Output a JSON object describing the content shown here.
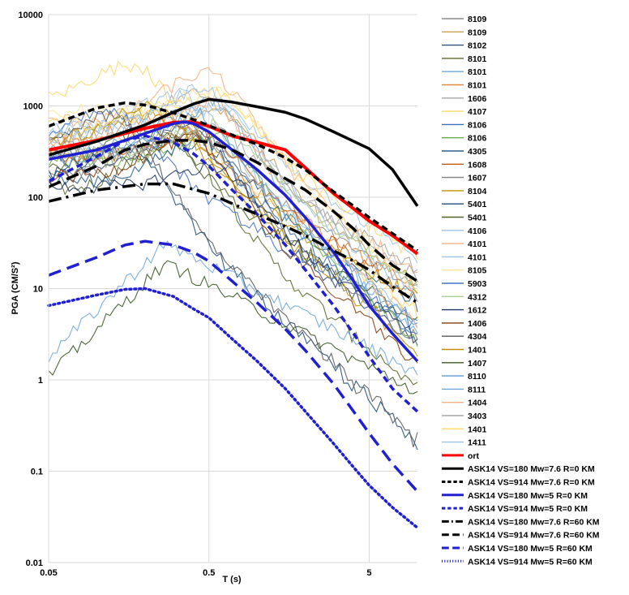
{
  "chart_data": {
    "type": "line",
    "title": "",
    "xlabel": "T (s)",
    "ylabel": "PGA (CM/S²)",
    "x_scale": "log",
    "y_scale": "log",
    "xlim": [
      0.05,
      10
    ],
    "ylim": [
      0.01,
      10000
    ],
    "x_ticks": [
      "0.05",
      "0.5",
      "5"
    ],
    "y_ticks": [
      "0.01",
      "0.1",
      "1",
      "10",
      "100",
      "1000",
      "10000"
    ],
    "grid": true,
    "legend_position": "right",
    "records": [
      {
        "name": "8109",
        "color": "#8c8c8c",
        "y0": 250
      },
      {
        "name": "8109",
        "color": "#c8a050",
        "y0": 300
      },
      {
        "name": "8102",
        "color": "#2f4f7f",
        "y0": 180
      },
      {
        "name": "8101",
        "color": "#5a6a2a",
        "y0": 120
      },
      {
        "name": "8101",
        "color": "#6fa8dc",
        "y0": 350
      },
      {
        "name": "8101",
        "color": "#e08a3c",
        "y0": 400
      },
      {
        "name": "1606",
        "color": "#a6a6a6",
        "y0": 500
      },
      {
        "name": "4107",
        "color": "#ffd966",
        "y0": 1100
      },
      {
        "name": "8106",
        "color": "#3d6fb5",
        "y0": 300
      },
      {
        "name": "8106",
        "color": "#70ad47",
        "y0": 250
      },
      {
        "name": "4305",
        "color": "#2e5f8a",
        "y0": 150
      },
      {
        "name": "1608",
        "color": "#c55a11",
        "y0": 280
      },
      {
        "name": "1607",
        "color": "#7f7f7f",
        "y0": 200
      },
      {
        "name": "8104",
        "color": "#c09000",
        "y0": 450
      },
      {
        "name": "5401",
        "color": "#1f4e79",
        "y0": 160
      },
      {
        "name": "5401",
        "color": "#4f6228",
        "y0": 220
      },
      {
        "name": "4106",
        "color": "#9dc3e6",
        "y0": 600
      },
      {
        "name": "4101",
        "color": "#f4b183",
        "y0": 700
      },
      {
        "name": "4101",
        "color": "#9fc5e8",
        "y0": 550
      },
      {
        "name": "8105",
        "color": "#ffe699",
        "y0": 900
      },
      {
        "name": "5903",
        "color": "#4472c4",
        "y0": 350
      },
      {
        "name": "4312",
        "color": "#a9d18e",
        "y0": 300
      },
      {
        "name": "1612",
        "color": "#203864",
        "y0": 130
      },
      {
        "name": "1406",
        "color": "#843c0c",
        "y0": 170
      },
      {
        "name": "4304",
        "color": "#595959",
        "y0": 240
      },
      {
        "name": "1401",
        "color": "#bf9000",
        "y0": 380
      },
      {
        "name": "1407",
        "color": "#385723",
        "y0": 1.1
      },
      {
        "name": "8110",
        "color": "#5b9bd5",
        "y0": 260
      },
      {
        "name": "8111",
        "color": "#6fa8dc",
        "y0": 1.8
      },
      {
        "name": "1404",
        "color": "#f4b183",
        "y0": 420
      },
      {
        "name": "3403",
        "color": "#a5a5a5",
        "y0": 320
      },
      {
        "name": "1401",
        "color": "#ffd966",
        "y0": 650
      },
      {
        "name": "1411",
        "color": "#9dc3e6",
        "y0": 480
      }
    ],
    "series": [
      {
        "name": "ort",
        "color": "#ff0000",
        "width": 4,
        "dash": "solid",
        "x": [
          0.05,
          0.1,
          0.2,
          0.3,
          0.4,
          0.5,
          0.7,
          1,
          1.5,
          2,
          3,
          4,
          5,
          7,
          10
        ],
        "y": [
          330,
          420,
          570,
          660,
          670,
          600,
          470,
          400,
          330,
          210,
          110,
          75,
          55,
          38,
          24
        ]
      },
      {
        "name": "ASK14 VS=180 Mw=7.6 R=0 KM",
        "color": "#000000",
        "width": 3.5,
        "dash": "solid",
        "x": [
          0.05,
          0.1,
          0.2,
          0.3,
          0.4,
          0.5,
          0.7,
          1,
          1.5,
          2,
          3,
          4,
          5,
          7,
          10
        ],
        "y": [
          290,
          410,
          620,
          850,
          1050,
          1180,
          1100,
          980,
          850,
          720,
          520,
          410,
          340,
          200,
          80
        ]
      },
      {
        "name": "ASK14 VS=914 Mw=7.6 R=0 KM",
        "color": "#000000",
        "width": 3.5,
        "dash": "8,5",
        "x": [
          0.05,
          0.1,
          0.15,
          0.2,
          0.3,
          0.4,
          0.5,
          0.7,
          1,
          1.5,
          2,
          3,
          4,
          5,
          7,
          10
        ],
        "y": [
          600,
          950,
          1080,
          1020,
          840,
          710,
          610,
          480,
          380,
          270,
          200,
          115,
          80,
          60,
          40,
          26
        ]
      },
      {
        "name": "ASK14 VS=180 Mw=5 R=0 KM",
        "color": "#2020d0",
        "width": 3.5,
        "dash": "solid",
        "x": [
          0.05,
          0.1,
          0.2,
          0.3,
          0.35,
          0.4,
          0.5,
          0.7,
          1,
          1.5,
          2,
          3,
          4,
          5,
          7,
          10
        ],
        "y": [
          260,
          330,
          500,
          640,
          670,
          640,
          520,
          330,
          200,
          105,
          60,
          25,
          12,
          6.5,
          3.2,
          1.6
        ]
      },
      {
        "name": "ASK14 VS=914 Mw=5 R=0 KM",
        "color": "#2020d0",
        "width": 3.5,
        "dash": "8,5",
        "x": [
          0.05,
          0.1,
          0.15,
          0.2,
          0.3,
          0.4,
          0.5,
          0.7,
          1,
          1.5,
          2,
          3,
          4,
          5,
          7,
          10
        ],
        "y": [
          150,
          280,
          420,
          470,
          400,
          300,
          220,
          120,
          65,
          30,
          16,
          6.5,
          3.2,
          1.8,
          0.8,
          0.45
        ]
      },
      {
        "name": "ASK14 VS=180 Mw=7.6 R=60 KM",
        "color": "#000000",
        "width": 3.5,
        "dash": "16,6,3,6",
        "x": [
          0.05,
          0.1,
          0.2,
          0.3,
          0.5,
          0.7,
          1,
          1.5,
          2,
          3,
          4,
          5,
          7,
          10
        ],
        "y": [
          90,
          120,
          140,
          140,
          110,
          85,
          65,
          48,
          38,
          26,
          20,
          16,
          10.5,
          7
        ]
      },
      {
        "name": "ASK14 VS=914 Mw=7.6 R=60 KM",
        "color": "#000000",
        "width": 3.5,
        "dash": "16,8",
        "x": [
          0.05,
          0.1,
          0.15,
          0.2,
          0.3,
          0.4,
          0.5,
          0.7,
          1,
          1.5,
          2,
          3,
          4,
          5,
          7,
          10
        ],
        "y": [
          130,
          220,
          330,
          380,
          420,
          420,
          400,
          330,
          240,
          160,
          120,
          70,
          45,
          30,
          18,
          12
        ]
      },
      {
        "name": "ASK14 VS=180 Mw=5 R=60 KM",
        "color": "#2020d0",
        "width": 3.5,
        "dash": "16,8",
        "x": [
          0.05,
          0.1,
          0.15,
          0.2,
          0.3,
          0.4,
          0.5,
          0.7,
          1,
          1.5,
          2,
          3,
          4,
          5,
          7,
          10
        ],
        "y": [
          14,
          22,
          30,
          33,
          30,
          25,
          20,
          12,
          7,
          3.6,
          2.1,
          0.9,
          0.45,
          0.26,
          0.12,
          0.06
        ]
      },
      {
        "name": "ASK14 VS=914 Mw=5 R=60 KM",
        "color": "#2020d0",
        "width": 3.5,
        "dash": "2,4",
        "x": [
          0.05,
          0.1,
          0.15,
          0.2,
          0.3,
          0.4,
          0.5,
          0.7,
          1,
          1.5,
          2,
          3,
          4,
          5,
          7,
          10
        ],
        "y": [
          6.5,
          8.5,
          9.8,
          10,
          8.2,
          6,
          4.8,
          2.8,
          1.6,
          0.8,
          0.45,
          0.2,
          0.11,
          0.07,
          0.04,
          0.024
        ]
      }
    ]
  }
}
